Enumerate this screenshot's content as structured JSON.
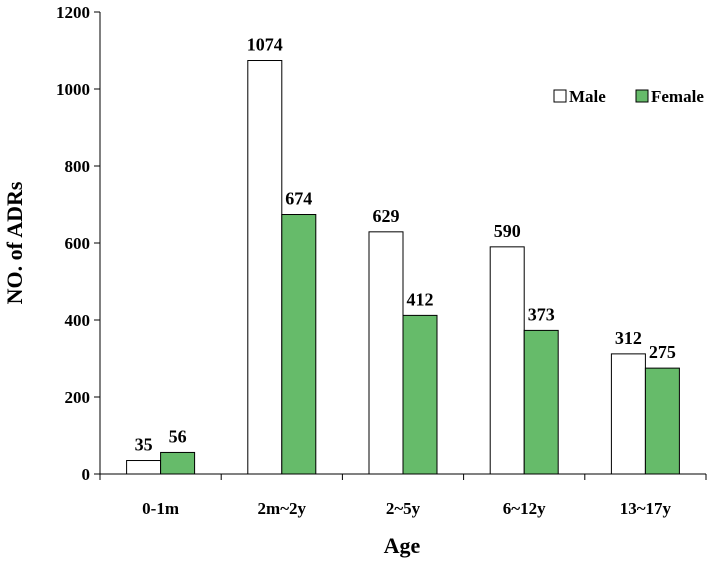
{
  "chart_data": {
    "type": "bar",
    "title": "",
    "xlabel": "Age",
    "ylabel": "NO. of ADRs",
    "ylim": [
      0,
      1200
    ],
    "yticks": [
      0,
      200,
      400,
      600,
      800,
      1000,
      1200
    ],
    "categories": [
      "0-1m",
      "2m~2y",
      "2~5y",
      "6~12y",
      "13~17y"
    ],
    "series": [
      {
        "name": "Male",
        "values": [
          35,
          1074,
          629,
          590,
          312
        ],
        "color": "#ffffff",
        "stroke": "#000000"
      },
      {
        "name": "Female",
        "values": [
          56,
          674,
          412,
          373,
          275
        ],
        "color": "#66bb6a",
        "stroke": "#000000"
      }
    ],
    "legend_position": "top-right",
    "grid": false
  }
}
